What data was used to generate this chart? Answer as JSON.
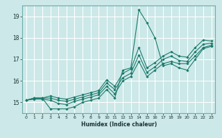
{
  "xlabel": "Humidex (Indice chaleur)",
  "bg_color": "#cce8e8",
  "grid_color": "#ffffff",
  "line_color": "#1a7a6a",
  "xmin": -0.5,
  "xmax": 23.5,
  "ymin": 14.5,
  "ymax": 19.5,
  "yticks": [
    15,
    16,
    17,
    18,
    19
  ],
  "xticks": [
    0,
    1,
    2,
    3,
    4,
    5,
    6,
    7,
    8,
    9,
    10,
    11,
    12,
    13,
    14,
    15,
    16,
    17,
    18,
    19,
    20,
    21,
    22,
    23
  ],
  "series": [
    {
      "x": [
        0,
        1,
        2,
        3,
        4,
        5,
        6,
        7,
        8,
        9,
        10,
        11,
        12,
        13,
        14,
        15,
        16,
        17,
        18,
        19,
        20,
        21,
        22,
        23
      ],
      "y": [
        15.1,
        15.2,
        15.2,
        14.7,
        14.7,
        14.7,
        14.8,
        15.0,
        15.1,
        15.2,
        15.6,
        15.2,
        16.5,
        16.6,
        19.3,
        18.7,
        18.0,
        16.7,
        16.8,
        16.6,
        16.5,
        17.0,
        17.5,
        17.6
      ]
    },
    {
      "x": [
        0,
        1,
        2,
        3,
        4,
        5,
        6,
        7,
        8,
        9,
        10,
        11,
        12,
        13,
        14,
        15,
        16,
        17,
        18,
        19,
        20,
        21,
        22,
        23
      ],
      "y": [
        15.1,
        15.15,
        15.15,
        15.1,
        14.95,
        14.9,
        15.05,
        15.15,
        15.25,
        15.35,
        15.75,
        15.4,
        16.0,
        16.2,
        16.9,
        16.2,
        16.5,
        16.8,
        16.9,
        16.8,
        16.8,
        17.15,
        17.55,
        17.65
      ]
    },
    {
      "x": [
        0,
        1,
        2,
        3,
        4,
        5,
        6,
        7,
        8,
        9,
        10,
        11,
        12,
        13,
        14,
        15,
        16,
        17,
        18,
        19,
        20,
        21,
        22,
        23
      ],
      "y": [
        15.1,
        15.2,
        15.2,
        15.2,
        15.1,
        15.05,
        15.15,
        15.25,
        15.35,
        15.45,
        15.9,
        15.6,
        16.15,
        16.35,
        17.2,
        16.4,
        16.65,
        17.0,
        17.15,
        16.95,
        16.9,
        17.35,
        17.7,
        17.75
      ]
    },
    {
      "x": [
        0,
        1,
        2,
        3,
        4,
        5,
        6,
        7,
        8,
        9,
        10,
        11,
        12,
        13,
        14,
        15,
        16,
        17,
        18,
        19,
        20,
        21,
        22,
        23
      ],
      "y": [
        15.1,
        15.2,
        15.2,
        15.3,
        15.2,
        15.15,
        15.25,
        15.35,
        15.45,
        15.55,
        16.05,
        15.75,
        16.35,
        16.55,
        17.55,
        16.6,
        16.85,
        17.15,
        17.35,
        17.15,
        17.1,
        17.55,
        17.9,
        17.85
      ]
    }
  ]
}
